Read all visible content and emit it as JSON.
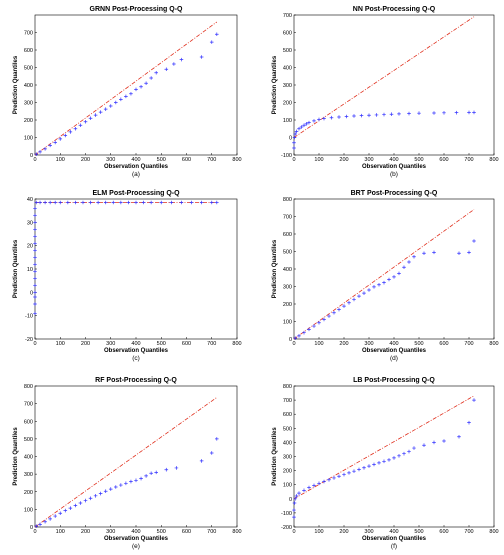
{
  "colors": {
    "markers": "#3333ff",
    "reference_line": "#e0301e",
    "frame": "#000000"
  },
  "chart_data": [
    {
      "type": "scatter",
      "title": "GRNN Post-Processing Q-Q",
      "xlabel": "Observation Quantiles",
      "ylabel": "Prediction Quantiles",
      "caption": "(a)",
      "xlim": [
        0,
        800
      ],
      "ylim": [
        0,
        800
      ],
      "xticks": [
        0,
        100,
        200,
        300,
        400,
        500,
        600,
        700,
        800
      ],
      "yticks": [
        0,
        100,
        200,
        300,
        400,
        500,
        600,
        700
      ],
      "reference_line": {
        "x": [
          0,
          720
        ],
        "y": [
          0,
          760
        ]
      },
      "marker": "+",
      "points": [
        [
          5,
          5
        ],
        [
          20,
          18
        ],
        [
          40,
          35
        ],
        [
          60,
          55
        ],
        [
          80,
          72
        ],
        [
          100,
          92
        ],
        [
          120,
          112
        ],
        [
          140,
          132
        ],
        [
          160,
          150
        ],
        [
          180,
          170
        ],
        [
          200,
          190
        ],
        [
          220,
          210
        ],
        [
          240,
          228
        ],
        [
          260,
          245
        ],
        [
          280,
          262
        ],
        [
          300,
          280
        ],
        [
          320,
          300
        ],
        [
          340,
          318
        ],
        [
          360,
          335
        ],
        [
          380,
          350
        ],
        [
          400,
          375
        ],
        [
          420,
          390
        ],
        [
          440,
          410
        ],
        [
          460,
          440
        ],
        [
          480,
          470
        ],
        [
          520,
          490
        ],
        [
          550,
          520
        ],
        [
          580,
          545
        ],
        [
          660,
          560
        ],
        [
          700,
          645
        ],
        [
          720,
          690
        ]
      ]
    },
    {
      "type": "scatter",
      "title": "NN Post-Processing Q-Q",
      "xlabel": "Observation Quantiles",
      "ylabel": "Prediction Quantiles",
      "caption": "(b)",
      "xlim": [
        0,
        800
      ],
      "ylim": [
        -100,
        700
      ],
      "xticks": [
        0,
        100,
        200,
        300,
        400,
        500,
        600,
        700,
        800
      ],
      "yticks": [
        -100,
        0,
        100,
        200,
        300,
        400,
        500,
        600,
        700
      ],
      "reference_line": {
        "x": [
          0,
          720
        ],
        "y": [
          0,
          690
        ]
      },
      "marker": "+",
      "points": [
        [
          0,
          -60
        ],
        [
          0,
          -30
        ],
        [
          2,
          0
        ],
        [
          5,
          20
        ],
        [
          10,
          35
        ],
        [
          20,
          50
        ],
        [
          30,
          60
        ],
        [
          40,
          70
        ],
        [
          50,
          78
        ],
        [
          60,
          85
        ],
        [
          80,
          95
        ],
        [
          100,
          103
        ],
        [
          120,
          108
        ],
        [
          150,
          113
        ],
        [
          180,
          117
        ],
        [
          210,
          120
        ],
        [
          240,
          123
        ],
        [
          270,
          125
        ],
        [
          300,
          127
        ],
        [
          330,
          129
        ],
        [
          360,
          131
        ],
        [
          390,
          133
        ],
        [
          420,
          135
        ],
        [
          460,
          137
        ],
        [
          500,
          139
        ],
        [
          560,
          140
        ],
        [
          600,
          141
        ],
        [
          650,
          142
        ],
        [
          700,
          143
        ],
        [
          720,
          143
        ]
      ]
    },
    {
      "type": "scatter",
      "title": "ELM Post-Processing Q-Q",
      "xlabel": "Observation Quantiles",
      "ylabel": "Prediction Quantiles",
      "caption": "(c)",
      "xlim": [
        0,
        800
      ],
      "ylim": [
        -20,
        40
      ],
      "xticks": [
        0,
        100,
        200,
        300,
        400,
        500,
        600,
        700,
        800
      ],
      "yticks": [
        -20,
        -10,
        0,
        10,
        20,
        30,
        40
      ],
      "reference_line": {
        "x": [
          0,
          720
        ],
        "y": [
          38.5,
          38.5
        ]
      },
      "marker": "+",
      "points": [
        [
          0,
          -9
        ],
        [
          0,
          -5
        ],
        [
          0,
          -2
        ],
        [
          0,
          0
        ],
        [
          0,
          3
        ],
        [
          0,
          6
        ],
        [
          0,
          9
        ],
        [
          0,
          12
        ],
        [
          0,
          15
        ],
        [
          0,
          18
        ],
        [
          0,
          21
        ],
        [
          0,
          24
        ],
        [
          0,
          27
        ],
        [
          0,
          30
        ],
        [
          0,
          33
        ],
        [
          0,
          36
        ],
        [
          5,
          38.5
        ],
        [
          20,
          38.5
        ],
        [
          40,
          38.5
        ],
        [
          60,
          38.5
        ],
        [
          80,
          38.5
        ],
        [
          100,
          38.5
        ],
        [
          130,
          38.5
        ],
        [
          160,
          38.5
        ],
        [
          190,
          38.5
        ],
        [
          220,
          38.5
        ],
        [
          250,
          38.5
        ],
        [
          280,
          38.5
        ],
        [
          310,
          38.5
        ],
        [
          340,
          38.5
        ],
        [
          370,
          38.5
        ],
        [
          400,
          38.5
        ],
        [
          430,
          38.5
        ],
        [
          460,
          38.5
        ],
        [
          500,
          38.5
        ],
        [
          540,
          38.5
        ],
        [
          580,
          38.5
        ],
        [
          620,
          38.5
        ],
        [
          660,
          38.5
        ],
        [
          700,
          38.5
        ],
        [
          720,
          38.5
        ]
      ]
    },
    {
      "type": "scatter",
      "title": "BRT Post-Processing Q-Q",
      "xlabel": "Observation Quantiles",
      "ylabel": "Prediction Quantiles",
      "caption": "(d)",
      "xlim": [
        0,
        800
      ],
      "ylim": [
        0,
        800
      ],
      "xticks": [
        0,
        100,
        200,
        300,
        400,
        500,
        600,
        700,
        800
      ],
      "yticks": [
        0,
        100,
        200,
        300,
        400,
        500,
        600,
        700,
        800
      ],
      "reference_line": {
        "x": [
          0,
          720
        ],
        "y": [
          0,
          740
        ]
      },
      "marker": "+",
      "points": [
        [
          5,
          5
        ],
        [
          20,
          18
        ],
        [
          40,
          36
        ],
        [
          60,
          55
        ],
        [
          80,
          74
        ],
        [
          100,
          93
        ],
        [
          120,
          112
        ],
        [
          140,
          131
        ],
        [
          160,
          150
        ],
        [
          180,
          168
        ],
        [
          200,
          188
        ],
        [
          220,
          207
        ],
        [
          240,
          226
        ],
        [
          260,
          245
        ],
        [
          280,
          262
        ],
        [
          300,
          280
        ],
        [
          320,
          298
        ],
        [
          340,
          310
        ],
        [
          360,
          322
        ],
        [
          380,
          340
        ],
        [
          400,
          355
        ],
        [
          420,
          375
        ],
        [
          440,
          410
        ],
        [
          460,
          440
        ],
        [
          480,
          470
        ],
        [
          520,
          490
        ],
        [
          560,
          495
        ],
        [
          660,
          490
        ],
        [
          700,
          495
        ],
        [
          720,
          560
        ]
      ]
    },
    {
      "type": "scatter",
      "title": "RF Post-Processing Q-Q",
      "xlabel": "Observation Quantiles",
      "ylabel": "Prediction Quantiles",
      "caption": "(e)",
      "xlim": [
        0,
        800
      ],
      "ylim": [
        0,
        800
      ],
      "xticks": [
        0,
        100,
        200,
        300,
        400,
        500,
        600,
        700,
        800
      ],
      "yticks": [
        0,
        100,
        200,
        300,
        400,
        500,
        600,
        700,
        800
      ],
      "reference_line": {
        "x": [
          0,
          720
        ],
        "y": [
          0,
          735
        ]
      },
      "marker": "+",
      "points": [
        [
          5,
          5
        ],
        [
          20,
          15
        ],
        [
          40,
          30
        ],
        [
          60,
          46
        ],
        [
          80,
          62
        ],
        [
          100,
          78
        ],
        [
          120,
          93
        ],
        [
          140,
          107
        ],
        [
          160,
          122
        ],
        [
          180,
          136
        ],
        [
          200,
          150
        ],
        [
          220,
          163
        ],
        [
          240,
          177
        ],
        [
          260,
          190
        ],
        [
          280,
          203
        ],
        [
          300,
          215
        ],
        [
          320,
          227
        ],
        [
          340,
          238
        ],
        [
          360,
          248
        ],
        [
          380,
          258
        ],
        [
          400,
          265
        ],
        [
          420,
          275
        ],
        [
          440,
          290
        ],
        [
          460,
          305
        ],
        [
          480,
          310
        ],
        [
          520,
          325
        ],
        [
          560,
          335
        ],
        [
          660,
          375
        ],
        [
          700,
          420
        ],
        [
          720,
          500
        ]
      ]
    },
    {
      "type": "scatter",
      "title": "LB Post-Processing Q-Q",
      "xlabel": "Observation Quantiles",
      "ylabel": "Prediction Quantiles",
      "caption": "(f)",
      "xlim": [
        0,
        800
      ],
      "ylim": [
        -200,
        800
      ],
      "xticks": [
        0,
        100,
        200,
        300,
        400,
        500,
        600,
        700,
        800
      ],
      "yticks": [
        -200,
        -100,
        0,
        100,
        200,
        300,
        400,
        500,
        600,
        700,
        800
      ],
      "reference_line": {
        "x": [
          0,
          720
        ],
        "y": [
          0,
          730
        ]
      },
      "marker": "+",
      "points": [
        [
          0,
          -130
        ],
        [
          0,
          -80
        ],
        [
          2,
          -30
        ],
        [
          5,
          0
        ],
        [
          10,
          20
        ],
        [
          20,
          40
        ],
        [
          40,
          60
        ],
        [
          60,
          80
        ],
        [
          80,
          95
        ],
        [
          100,
          110
        ],
        [
          120,
          122
        ],
        [
          140,
          135
        ],
        [
          160,
          148
        ],
        [
          180,
          160
        ],
        [
          200,
          172
        ],
        [
          220,
          184
        ],
        [
          240,
          196
        ],
        [
          260,
          208
        ],
        [
          280,
          220
        ],
        [
          300,
          232
        ],
        [
          320,
          244
        ],
        [
          340,
          255
        ],
        [
          360,
          266
        ],
        [
          380,
          276
        ],
        [
          400,
          290
        ],
        [
          420,
          305
        ],
        [
          440,
          320
        ],
        [
          460,
          335
        ],
        [
          480,
          360
        ],
        [
          520,
          380
        ],
        [
          560,
          400
        ],
        [
          600,
          410
        ],
        [
          660,
          440
        ],
        [
          700,
          540
        ],
        [
          720,
          700
        ]
      ]
    }
  ]
}
